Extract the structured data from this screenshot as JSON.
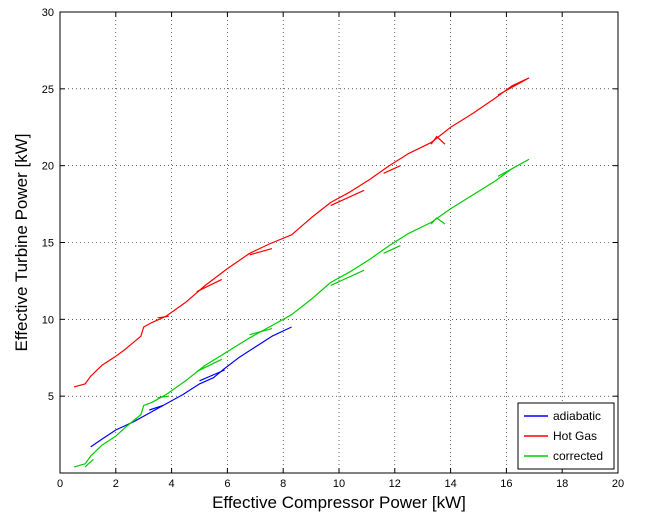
{
  "chart_data": {
    "type": "line",
    "title": "",
    "xlabel": "Effective Compressor Power [kW]",
    "ylabel": "Effective Turbine Power [kW]",
    "xlim": [
      0,
      20
    ],
    "ylim": [
      0,
      30
    ],
    "xticks": [
      0,
      2,
      4,
      6,
      8,
      10,
      12,
      14,
      16,
      18,
      20
    ],
    "yticks": [
      5,
      10,
      15,
      20,
      25,
      30
    ],
    "x_tick_labels": [
      "0",
      "2",
      "4",
      "6",
      "8",
      "10",
      "12",
      "14",
      "16",
      "18",
      "20"
    ],
    "y_tick_labels": [
      "5",
      "10",
      "15",
      "20",
      "25",
      "30"
    ],
    "grid": true,
    "legend_position": "bottom-right",
    "series": [
      {
        "name": "adiabatic",
        "color": "#0000ff",
        "x": [
          1.1,
          1.5,
          2.0,
          2.6,
          3.2,
          3.8,
          4.4,
          5.0,
          5.5,
          5.9,
          6.4,
          7.0,
          7.6,
          8.3
        ],
        "y": [
          1.7,
          2.2,
          2.8,
          3.3,
          3.9,
          4.5,
          5.1,
          5.8,
          6.2,
          6.8,
          7.5,
          8.2,
          8.9,
          9.5
        ],
        "segments": [
          {
            "x": [
              3.2,
              3.7
            ],
            "y": [
              4.1,
              4.4
            ]
          },
          {
            "x": [
              5.0,
              5.9
            ],
            "y": [
              6.0,
              6.7
            ]
          }
        ]
      },
      {
        "name": "Hot Gas",
        "color": "#ff0000",
        "x": [
          0.5,
          0.9,
          1.1,
          1.5,
          2.0,
          2.3,
          2.9,
          3.0,
          3.3,
          3.8,
          4.5,
          5.2,
          6.0,
          6.8,
          7.5,
          8.3,
          9.0,
          9.7,
          10.4,
          11.1,
          11.8,
          12.5,
          13.3,
          14.0,
          14.8,
          15.6,
          16.2,
          16.8,
          16.5,
          15.7
        ],
        "y": [
          5.6,
          5.8,
          6.3,
          7.0,
          7.6,
          8.0,
          8.9,
          9.5,
          9.8,
          10.2,
          11.1,
          12.2,
          13.3,
          14.3,
          14.9,
          15.5,
          16.6,
          17.6,
          18.3,
          19.1,
          20.0,
          20.8,
          21.5,
          22.5,
          23.4,
          24.4,
          25.2,
          25.7,
          25.4,
          24.6
        ],
        "segments": [
          {
            "x": [
              3.5,
              3.9
            ],
            "y": [
              10.1,
              10.2
            ]
          },
          {
            "x": [
              4.9,
              5.8
            ],
            "y": [
              11.8,
              12.6
            ]
          },
          {
            "x": [
              6.8,
              7.6
            ],
            "y": [
              14.2,
              14.6
            ]
          },
          {
            "x": [
              9.7,
              10.9
            ],
            "y": [
              17.4,
              18.4
            ]
          },
          {
            "x": [
              11.6,
              12.2
            ],
            "y": [
              19.5,
              20.0
            ]
          },
          {
            "x": [
              13.3,
              13.5,
              13.8
            ],
            "y": [
              21.4,
              21.9,
              21.4
            ]
          }
        ]
      },
      {
        "name": "corrected",
        "color": "#00cc00",
        "x": [
          0.5,
          0.9,
          1.1,
          1.5,
          2.0,
          2.3,
          2.9,
          3.0,
          3.3,
          3.8,
          4.5,
          5.2,
          6.0,
          6.8,
          7.5,
          8.3,
          9.0,
          9.7,
          10.4,
          11.1,
          11.8,
          12.5,
          13.3,
          14.0,
          14.8,
          15.6,
          16.2,
          16.8,
          16.5,
          15.7
        ],
        "y": [
          0.4,
          0.6,
          1.1,
          1.8,
          2.4,
          2.9,
          3.8,
          4.4,
          4.6,
          5.1,
          6.0,
          7.0,
          7.9,
          8.8,
          9.5,
          10.3,
          11.3,
          12.4,
          13.1,
          13.9,
          14.8,
          15.6,
          16.3,
          17.2,
          18.1,
          19.0,
          19.8,
          20.4,
          20.1,
          19.3
        ],
        "segments": [
          {
            "x": [
              0.9,
              1.2
            ],
            "y": [
              0.4,
              0.9
            ]
          },
          {
            "x": [
              3.5,
              3.9
            ],
            "y": [
              4.9,
              5.0
            ]
          },
          {
            "x": [
              4.9,
              5.8
            ],
            "y": [
              6.6,
              7.4
            ]
          },
          {
            "x": [
              6.8,
              7.6
            ],
            "y": [
              9.0,
              9.4
            ]
          },
          {
            "x": [
              9.7,
              10.9
            ],
            "y": [
              12.2,
              13.2
            ]
          },
          {
            "x": [
              11.6,
              12.2
            ],
            "y": [
              14.3,
              14.8
            ]
          },
          {
            "x": [
              13.3,
              13.5,
              13.8
            ],
            "y": [
              16.2,
              16.6,
              16.2
            ]
          }
        ]
      }
    ]
  }
}
